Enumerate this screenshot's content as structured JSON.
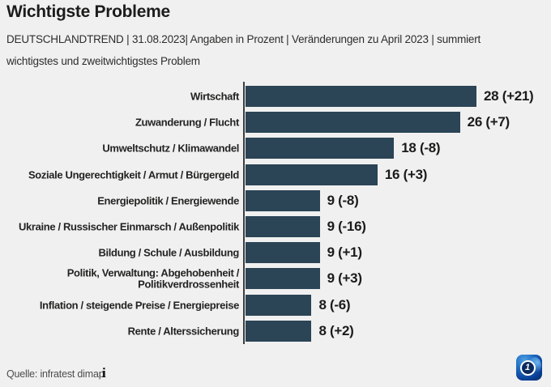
{
  "header": {
    "title": "Wichtigste Probleme",
    "subtitle_line1": "DEUTSCHLANDTREND | 31.08.2023| Angaben in Prozent | Veränderungen zu April 2023 | summiert",
    "subtitle_line2": "wichtigstes und zweitwichtigstes Problem"
  },
  "chart_data": {
    "type": "bar",
    "orientation": "horizontal",
    "title": "Wichtigste Probleme",
    "unit": "Prozent",
    "comparison_note": "Veränderungen zu April 2023",
    "xlim": [
      0,
      28
    ],
    "grid": false,
    "legend": false,
    "bar_color": "#2b4456",
    "categories": [
      "Wirtschaft",
      "Zuwanderung / Flucht",
      "Umweltschutz / Klimawandel",
      "Soziale Ungerechtigkeit / Armut / Bürgergeld",
      "Energiepolitik / Energiewende",
      "Ukraine / Russischer Einmarsch / Außenpolitik",
      "Bildung / Schule / Ausbildung",
      "Politik, Verwaltung: Abgehobenheit / Politikverdrossenheit",
      "Inflation / steigende Preise / Energiepreise",
      "Rente / Alterssicherung"
    ],
    "values": [
      28,
      26,
      18,
      16,
      9,
      9,
      9,
      9,
      8,
      8
    ],
    "changes": [
      "+21",
      "+7",
      "-8",
      "+3",
      "-8",
      "-16",
      "+1",
      "+3",
      "-6",
      "+2"
    ],
    "rows": [
      {
        "label_lines": [
          "Wirtschaft"
        ],
        "value": 28,
        "change": "+21",
        "display": "28 (+21)"
      },
      {
        "label_lines": [
          "Zuwanderung / Flucht"
        ],
        "value": 26,
        "change": "+7",
        "display": "26 (+7)"
      },
      {
        "label_lines": [
          "Umweltschutz / Klimawandel"
        ],
        "value": 18,
        "change": "-8",
        "display": "18 (-8)"
      },
      {
        "label_lines": [
          "Soziale Ungerechtigkeit / Armut / Bürgergeld"
        ],
        "value": 16,
        "change": "+3",
        "display": "16 (+3)"
      },
      {
        "label_lines": [
          "Energiepolitik / Energiewende"
        ],
        "value": 9,
        "change": "-8",
        "display": "9 (-8)"
      },
      {
        "label_lines": [
          "Ukraine / Russischer Einmarsch / Außenpolitik"
        ],
        "value": 9,
        "change": "-16",
        "display": "9 (-16)"
      },
      {
        "label_lines": [
          "Bildung / Schule / Ausbildung"
        ],
        "value": 9,
        "change": "+1",
        "display": "9 (+1)"
      },
      {
        "label_lines": [
          "Politik, Verwaltung: Abgehobenheit /",
          "Politikverdrossenheit"
        ],
        "value": 9,
        "change": "+3",
        "display": "9 (+3)"
      },
      {
        "label_lines": [
          "Inflation / steigende Preise / Energiepreise"
        ],
        "value": 8,
        "change": "-6",
        "display": "8 (-6)"
      },
      {
        "label_lines": [
          "Rente / Alterssicherung"
        ],
        "value": 8,
        "change": "+2",
        "display": "8 (+2)"
      }
    ]
  },
  "footer": {
    "source": "Quelle: infratest dimap",
    "info_icon": "i"
  },
  "logo": {
    "name": "ard-tagesschau-logo",
    "label": "1"
  },
  "colors": {
    "background": "#f0f0f0",
    "bar": "#2b4456",
    "text": "#1c1c1a",
    "axis": "#3d3d3d",
    "source_text": "#4c4c4c"
  }
}
